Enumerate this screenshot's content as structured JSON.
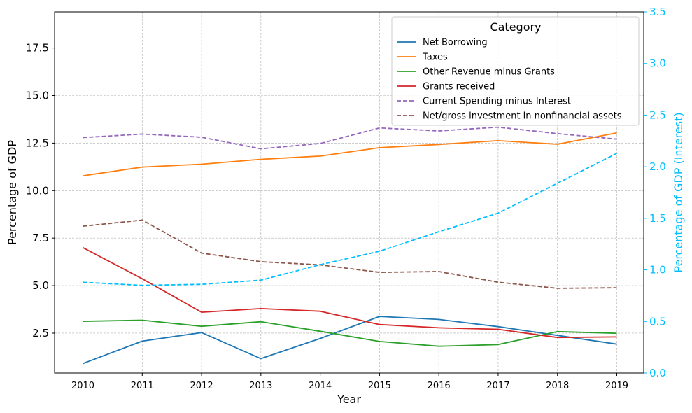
{
  "chart_data": {
    "type": "line",
    "title": "",
    "xlabel": "Year",
    "ylabel": "Percentage of GDP",
    "ylabel_right": "Percentage of GDP (Interest)",
    "right_axis_color": "#00bfff",
    "x": [
      "2010",
      "2011",
      "2012",
      "2013",
      "2014",
      "2015",
      "2016",
      "2017",
      "2018",
      "2019"
    ],
    "ylim": [
      0.4,
      19.4
    ],
    "ylim_right": [
      0,
      3.5
    ],
    "yticks": [
      {
        "value": 2.5,
        "label": "2.5"
      },
      {
        "value": 5.0,
        "label": "5.0"
      },
      {
        "value": 7.5,
        "label": "7.5"
      },
      {
        "value": 10.0,
        "label": "10.0"
      },
      {
        "value": 12.5,
        "label": "12.5"
      },
      {
        "value": 15.0,
        "label": "15.0"
      },
      {
        "value": 17.5,
        "label": "17.5"
      }
    ],
    "yticks_right": [
      {
        "value": 0.0,
        "label": "0.0"
      },
      {
        "value": 0.5,
        "label": "0.5"
      },
      {
        "value": 1.0,
        "label": "1.0"
      },
      {
        "value": 1.5,
        "label": "1.5"
      },
      {
        "value": 2.0,
        "label": "2.0"
      },
      {
        "value": 2.5,
        "label": "2.5"
      },
      {
        "value": 3.0,
        "label": "3.0"
      },
      {
        "value": 3.5,
        "label": "3.5"
      }
    ],
    "grid": true,
    "legend_title": "Category",
    "legend_position": "upper-right",
    "series": [
      {
        "name": "Net Borrowing",
        "color": "#1f77b4",
        "dashed": false,
        "axis": "left",
        "values": [
          0.9,
          2.08,
          2.53,
          1.16,
          2.22,
          3.38,
          3.22,
          2.84,
          2.38,
          1.92
        ]
      },
      {
        "name": "Taxes",
        "color": "#ff7f0e",
        "dashed": false,
        "axis": "left",
        "values": [
          10.78,
          11.24,
          11.39,
          11.65,
          11.82,
          12.26,
          12.43,
          12.63,
          12.44,
          13.04
        ]
      },
      {
        "name": "Other Revenue minus Grants",
        "color": "#2ca02c",
        "dashed": false,
        "axis": "left",
        "values": [
          3.12,
          3.18,
          2.86,
          3.1,
          2.6,
          2.06,
          1.81,
          1.9,
          2.58,
          2.49
        ]
      },
      {
        "name": "Grants received",
        "color": "#d62728",
        "dashed": false,
        "axis": "left",
        "values": [
          7.0,
          5.36,
          3.6,
          3.79,
          3.65,
          2.95,
          2.78,
          2.7,
          2.27,
          2.3
        ]
      },
      {
        "name": "Current Spending minus Interest",
        "color": "#9467bd",
        "dashed": true,
        "axis": "left",
        "values": [
          12.79,
          12.98,
          12.81,
          12.2,
          12.48,
          13.3,
          13.14,
          13.34,
          13.0,
          12.71
        ]
      },
      {
        "name": "Net/gross investment in nonfinancial assets",
        "color": "#8c564b",
        "dashed": true,
        "axis": "left",
        "values": [
          8.13,
          8.45,
          6.71,
          6.26,
          6.09,
          5.7,
          5.74,
          5.18,
          4.86,
          4.89
        ]
      },
      {
        "name": "Interest",
        "color": "#00bfff",
        "dashed": true,
        "axis": "right",
        "in_legend": false,
        "values": [
          0.88,
          0.85,
          0.86,
          0.9,
          1.05,
          1.18,
          1.37,
          1.55,
          1.84,
          2.13
        ]
      }
    ]
  }
}
